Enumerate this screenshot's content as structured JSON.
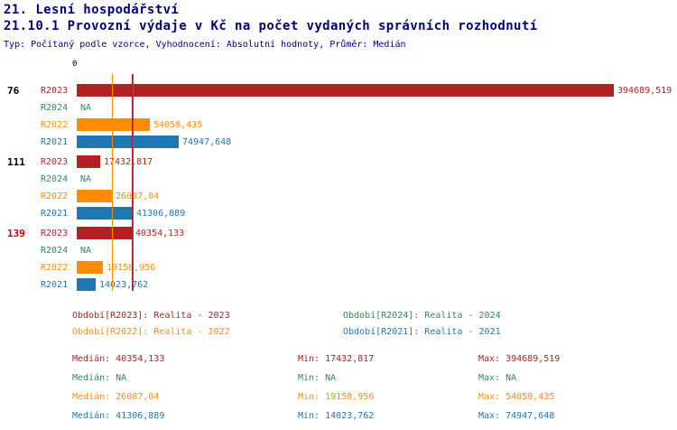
{
  "title": "21. Lesní hospodářství",
  "subtitle": "21.10.1 Provozní výdaje v Kč na počet vydaných správních rozhodnutí",
  "meta": "Typ: Počítaný podle vzorce, Vyhodnocení: Absolutní hodnoty, Průměr: Medián",
  "colors": {
    "title": "#000080",
    "axis": "#000000",
    "series": {
      "R2023": "#B22222",
      "R2024": "#2E8B57",
      "R2022": "#FF8C00",
      "R2021": "#1F77B4"
    }
  },
  "chart_data": {
    "type": "bar",
    "orientation": "horizontal",
    "value_axis_min": 0,
    "axis_zero_label": "0",
    "unit": "Kč",
    "max_value": 394689.519,
    "series_names": [
      "R2023",
      "R2024",
      "R2022",
      "R2021"
    ],
    "groups": [
      {
        "id": "76",
        "id_color": "#000000",
        "rows": [
          {
            "series": "R2023",
            "value": 394689.519,
            "label": "394689,519"
          },
          {
            "series": "R2024",
            "value": null,
            "label": "NA"
          },
          {
            "series": "R2022",
            "value": 54058.435,
            "label": "54058,435"
          },
          {
            "series": "R2021",
            "value": 74947.648,
            "label": "74947,648"
          }
        ]
      },
      {
        "id": "111",
        "id_color": "#000000",
        "rows": [
          {
            "series": "R2023",
            "value": 17432.817,
            "label": "17432,817"
          },
          {
            "series": "R2024",
            "value": null,
            "label": "NA"
          },
          {
            "series": "R2022",
            "value": 26087.04,
            "label": "26087,04"
          },
          {
            "series": "R2021",
            "value": 41306.889,
            "label": "41306,889"
          }
        ]
      },
      {
        "id": "139",
        "id_color": "#CC0000",
        "rows": [
          {
            "series": "R2023",
            "value": 40354.133,
            "label": "40354,133"
          },
          {
            "series": "R2024",
            "value": null,
            "label": "NA"
          },
          {
            "series": "R2022",
            "value": 19158.956,
            "label": "19158,956"
          },
          {
            "series": "R2021",
            "value": 14023.762,
            "label": "14023,762"
          }
        ]
      }
    ],
    "median_lines": [
      {
        "series": "R2022",
        "value": 26087.04,
        "color": "#FF8C00"
      },
      {
        "series": "R2023",
        "value": 40354.133,
        "color": "#B22222"
      },
      {
        "series": "R2021",
        "value": 41306.889,
        "color": "#1F77B4"
      }
    ]
  },
  "legend": [
    {
      "series": "R2023",
      "label": "Období[R2023]: Realita - 2023"
    },
    {
      "series": "R2024",
      "label": "Období[R2024]: Realita - 2024"
    },
    {
      "series": "R2022",
      "label": "Období[R2022]: Realita - 2022"
    },
    {
      "series": "R2021",
      "label": "Období[R2021]: Realita - 2021"
    }
  ],
  "stats": [
    {
      "series": "R2023",
      "median": "Medián: 40354,133",
      "min": "Min: 17432,817",
      "max": "Max: 394689,519"
    },
    {
      "series": "R2024",
      "median": "Medián: NA",
      "min": "Min: NA",
      "max": "Max: NA"
    },
    {
      "series": "R2022",
      "median": "Medián: 26087,04",
      "min": "Min: 19158,956",
      "max": "Max: 54058,435"
    },
    {
      "series": "R2021",
      "median": "Medián: 41306,889",
      "min": "Min: 14023,762",
      "max": "Max: 74947,648"
    }
  ]
}
